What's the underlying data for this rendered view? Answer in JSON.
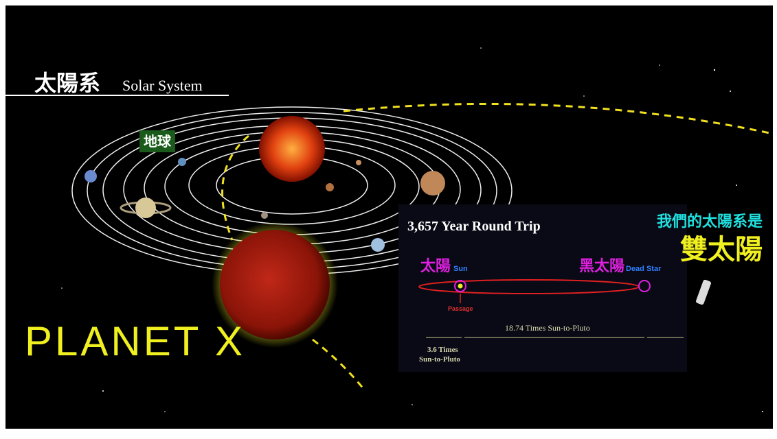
{
  "header": {
    "title_cn": "太陽系",
    "title_en": "Solar System"
  },
  "labels": {
    "earth": "地球",
    "planet_x": "PLANET X"
  },
  "inset": {
    "title": "3,657 Year Round Trip",
    "heading_line1": "我們的太陽系是",
    "heading_line2": "雙太陽",
    "sun_cn": "太陽",
    "sun_en": "Sun",
    "dead_star_cn": "黑太陽",
    "dead_star_en": "Dead Star",
    "passage": "Passage",
    "distance_long": "18.74 Times Sun-to-Pluto",
    "distance_short_line1": "3.6 Times",
    "distance_short_line2": "Sun-to-Pluto"
  }
}
